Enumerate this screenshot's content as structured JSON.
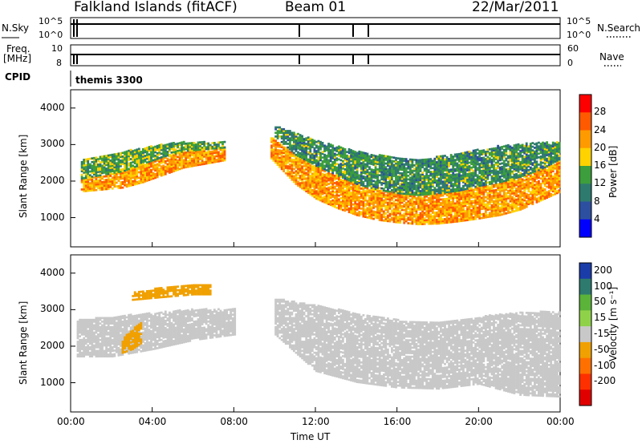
{
  "header": {
    "station": "Falkland Islands (fitACF)",
    "beam": "Beam 01",
    "date": "22/Mar/2011"
  },
  "strips": {
    "nsky_label": "N.Sky",
    "nsky_ticks": [
      "10^5",
      "10^0"
    ],
    "nsearch_label": "N.Search",
    "nsearch_ticks": [
      "10^5",
      "10^0"
    ],
    "freq_label": "Freq.",
    "freq_unit": "[MHz]",
    "freq_ticks": [
      "10",
      "8"
    ],
    "nave_label": "Nave",
    "nave_ticks": [
      "60",
      "0"
    ],
    "cpid_label": "CPID",
    "cpid_value": "themis 3300"
  },
  "axes": {
    "xlabel": "Time UT",
    "x_ticks": [
      "00:00",
      "04:00",
      "08:00",
      "12:00",
      "16:00",
      "20:00",
      "00:00"
    ],
    "ylabel": "Slant Range [km]",
    "y_ticks": [
      "1000",
      "2000",
      "3000",
      "4000"
    ]
  },
  "power_scale": {
    "label": "Power [dB]",
    "ticks": [
      "28",
      "24",
      "20",
      "16",
      "12",
      "8",
      "4"
    ],
    "colors": [
      "#ff0000",
      "#ff5a00",
      "#ff9a00",
      "#ffd200",
      "#3c9e3c",
      "#2e7a6e",
      "#2d4fa0",
      "#0000ff"
    ]
  },
  "velocity_scale": {
    "label": "Velocity [m s⁻¹]",
    "ticks": [
      "200",
      "100",
      "50",
      "15",
      "-15",
      "-50",
      "-100",
      "-200"
    ],
    "colors": [
      "#1a3ca8",
      "#2e7a6e",
      "#5bb33a",
      "#8fd24a",
      "#c8c8c8",
      "#f0a000",
      "#ff7000",
      "#ff3000",
      "#e00000"
    ]
  },
  "chart_data": [
    {
      "type": "heatmap",
      "name": "power",
      "x_unit": "hours UT",
      "xlim": [
        0,
        24
      ],
      "ylim": [
        200,
        4500
      ],
      "bands": [
        {
          "x": [
            0.5,
            1.5,
            2.5,
            3.5,
            4.5,
            5.5,
            6.5,
            7.5
          ],
          "lower": [
            1700,
            1750,
            1800,
            1950,
            2150,
            2350,
            2450,
            2550
          ],
          "upper": [
            2050,
            2150,
            2250,
            2450,
            2650,
            2800,
            2850,
            2900
          ],
          "power": 22
        },
        {
          "x": [
            0.5,
            1.5,
            2.5,
            3.5,
            4.5,
            5.5,
            6.5,
            7.5
          ],
          "lower": [
            2050,
            2150,
            2250,
            2450,
            2650,
            2800,
            2850,
            2900
          ],
          "upper": [
            2600,
            2700,
            2800,
            2900,
            3000,
            3050,
            3050,
            3050
          ],
          "power": 14
        },
        {
          "x": [
            9.8,
            11,
            12,
            13,
            14,
            15,
            16,
            17,
            18,
            19,
            20,
            21,
            22,
            23,
            24
          ],
          "lower": [
            2600,
            1900,
            1500,
            1250,
            1050,
            920,
            850,
            800,
            820,
            880,
            960,
            1050,
            1200,
            1450,
            1700
          ],
          "upper": [
            3200,
            2700,
            2400,
            2150,
            1900,
            1750,
            1650,
            1600,
            1650,
            1720,
            1850,
            1950,
            2100,
            2300,
            2600
          ],
          "power": 22
        },
        {
          "x": [
            10,
            11,
            12,
            13,
            14,
            15,
            16,
            17,
            18,
            19,
            20,
            21,
            22,
            23,
            24
          ],
          "lower": [
            3200,
            2700,
            2400,
            2150,
            1900,
            1750,
            1650,
            1600,
            1650,
            1720,
            1850,
            1950,
            2100,
            2300,
            2600
          ],
          "upper": [
            3500,
            3300,
            3100,
            2950,
            2800,
            2700,
            2650,
            2600,
            2650,
            2750,
            2850,
            2950,
            3000,
            3050,
            3050
          ],
          "power": 12
        }
      ]
    },
    {
      "type": "heatmap",
      "name": "velocity",
      "x_unit": "hours UT",
      "xlim": [
        0,
        24
      ],
      "ylim": [
        200,
        4500
      ],
      "bands": [
        {
          "x": [
            0.3,
            2,
            4,
            6,
            8
          ],
          "lower": [
            1700,
            1700,
            1900,
            2150,
            2300
          ],
          "upper": [
            2700,
            2800,
            2900,
            3000,
            3000
          ],
          "velocity": 0
        },
        {
          "x": [
            2.5,
            3,
            3.5
          ],
          "lower": [
            1800,
            1900,
            2100
          ],
          "upper": [
            2200,
            2450,
            2700
          ],
          "velocity": -40
        },
        {
          "x": [
            3,
            4,
            5,
            6,
            6.8
          ],
          "lower": [
            3250,
            3300,
            3350,
            3400,
            3400
          ],
          "upper": [
            3500,
            3550,
            3650,
            3700,
            3700
          ],
          "velocity": -30
        },
        {
          "x": [
            10,
            12,
            14,
            16,
            18,
            20,
            22,
            24
          ],
          "lower": [
            2300,
            1300,
            1000,
            850,
            820,
            950,
            650,
            600
          ],
          "upper": [
            3300,
            3100,
            2900,
            2700,
            2650,
            2800,
            2900,
            2950
          ],
          "velocity": 0
        }
      ]
    }
  ]
}
